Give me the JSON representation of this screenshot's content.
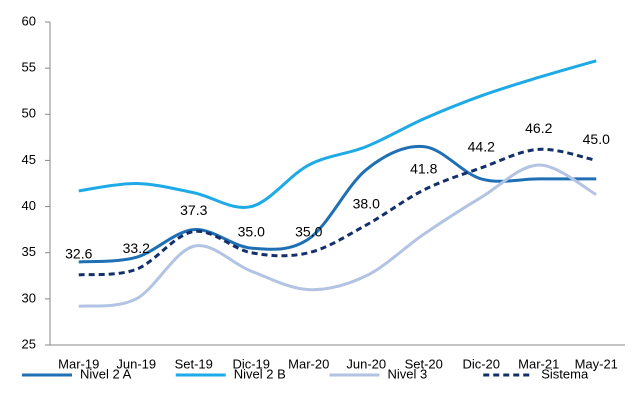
{
  "chart_data": {
    "type": "line",
    "categories": [
      "Mar-19",
      "Jun-19",
      "Set-19",
      "Dic-19",
      "Mar-20",
      "Jun-20",
      "Set-20",
      "Dic-20",
      "Mar-21",
      "May-21"
    ],
    "series": [
      {
        "name": "Nivel 2 A",
        "color": "#1f6fb4",
        "dash": false,
        "values": [
          34,
          34.5,
          37.5,
          35.5,
          36.5,
          44,
          46.5,
          43,
          43,
          43
        ]
      },
      {
        "name": "Nivel 2 B",
        "color": "#1eaae6",
        "dash": false,
        "values": [
          41.7,
          42.5,
          41.5,
          40,
          44.5,
          46.5,
          49.5,
          52,
          54,
          55.8
        ]
      },
      {
        "name": "Nivel 3",
        "color": "#b2c3e3",
        "dash": false,
        "values": [
          29.2,
          30,
          35.7,
          33,
          31,
          32.5,
          37,
          41,
          44.5,
          41.3
        ]
      },
      {
        "name": "Sistema",
        "color": "#13306b",
        "dash": true,
        "values": [
          32.6,
          33.2,
          37.3,
          35.0,
          35.0,
          38.0,
          41.8,
          44.2,
          46.2,
          45.0
        ],
        "value_labels": [
          "32.6",
          "33.2",
          "37.3",
          "35.0",
          "35.0",
          "38.0",
          "41.8",
          "44.2",
          "46.2",
          "45.0"
        ]
      }
    ],
    "ylim": [
      25,
      60
    ],
    "yticks": [
      25,
      30,
      35,
      40,
      45,
      50,
      55,
      60
    ],
    "grid": false,
    "legend": "bottom"
  }
}
